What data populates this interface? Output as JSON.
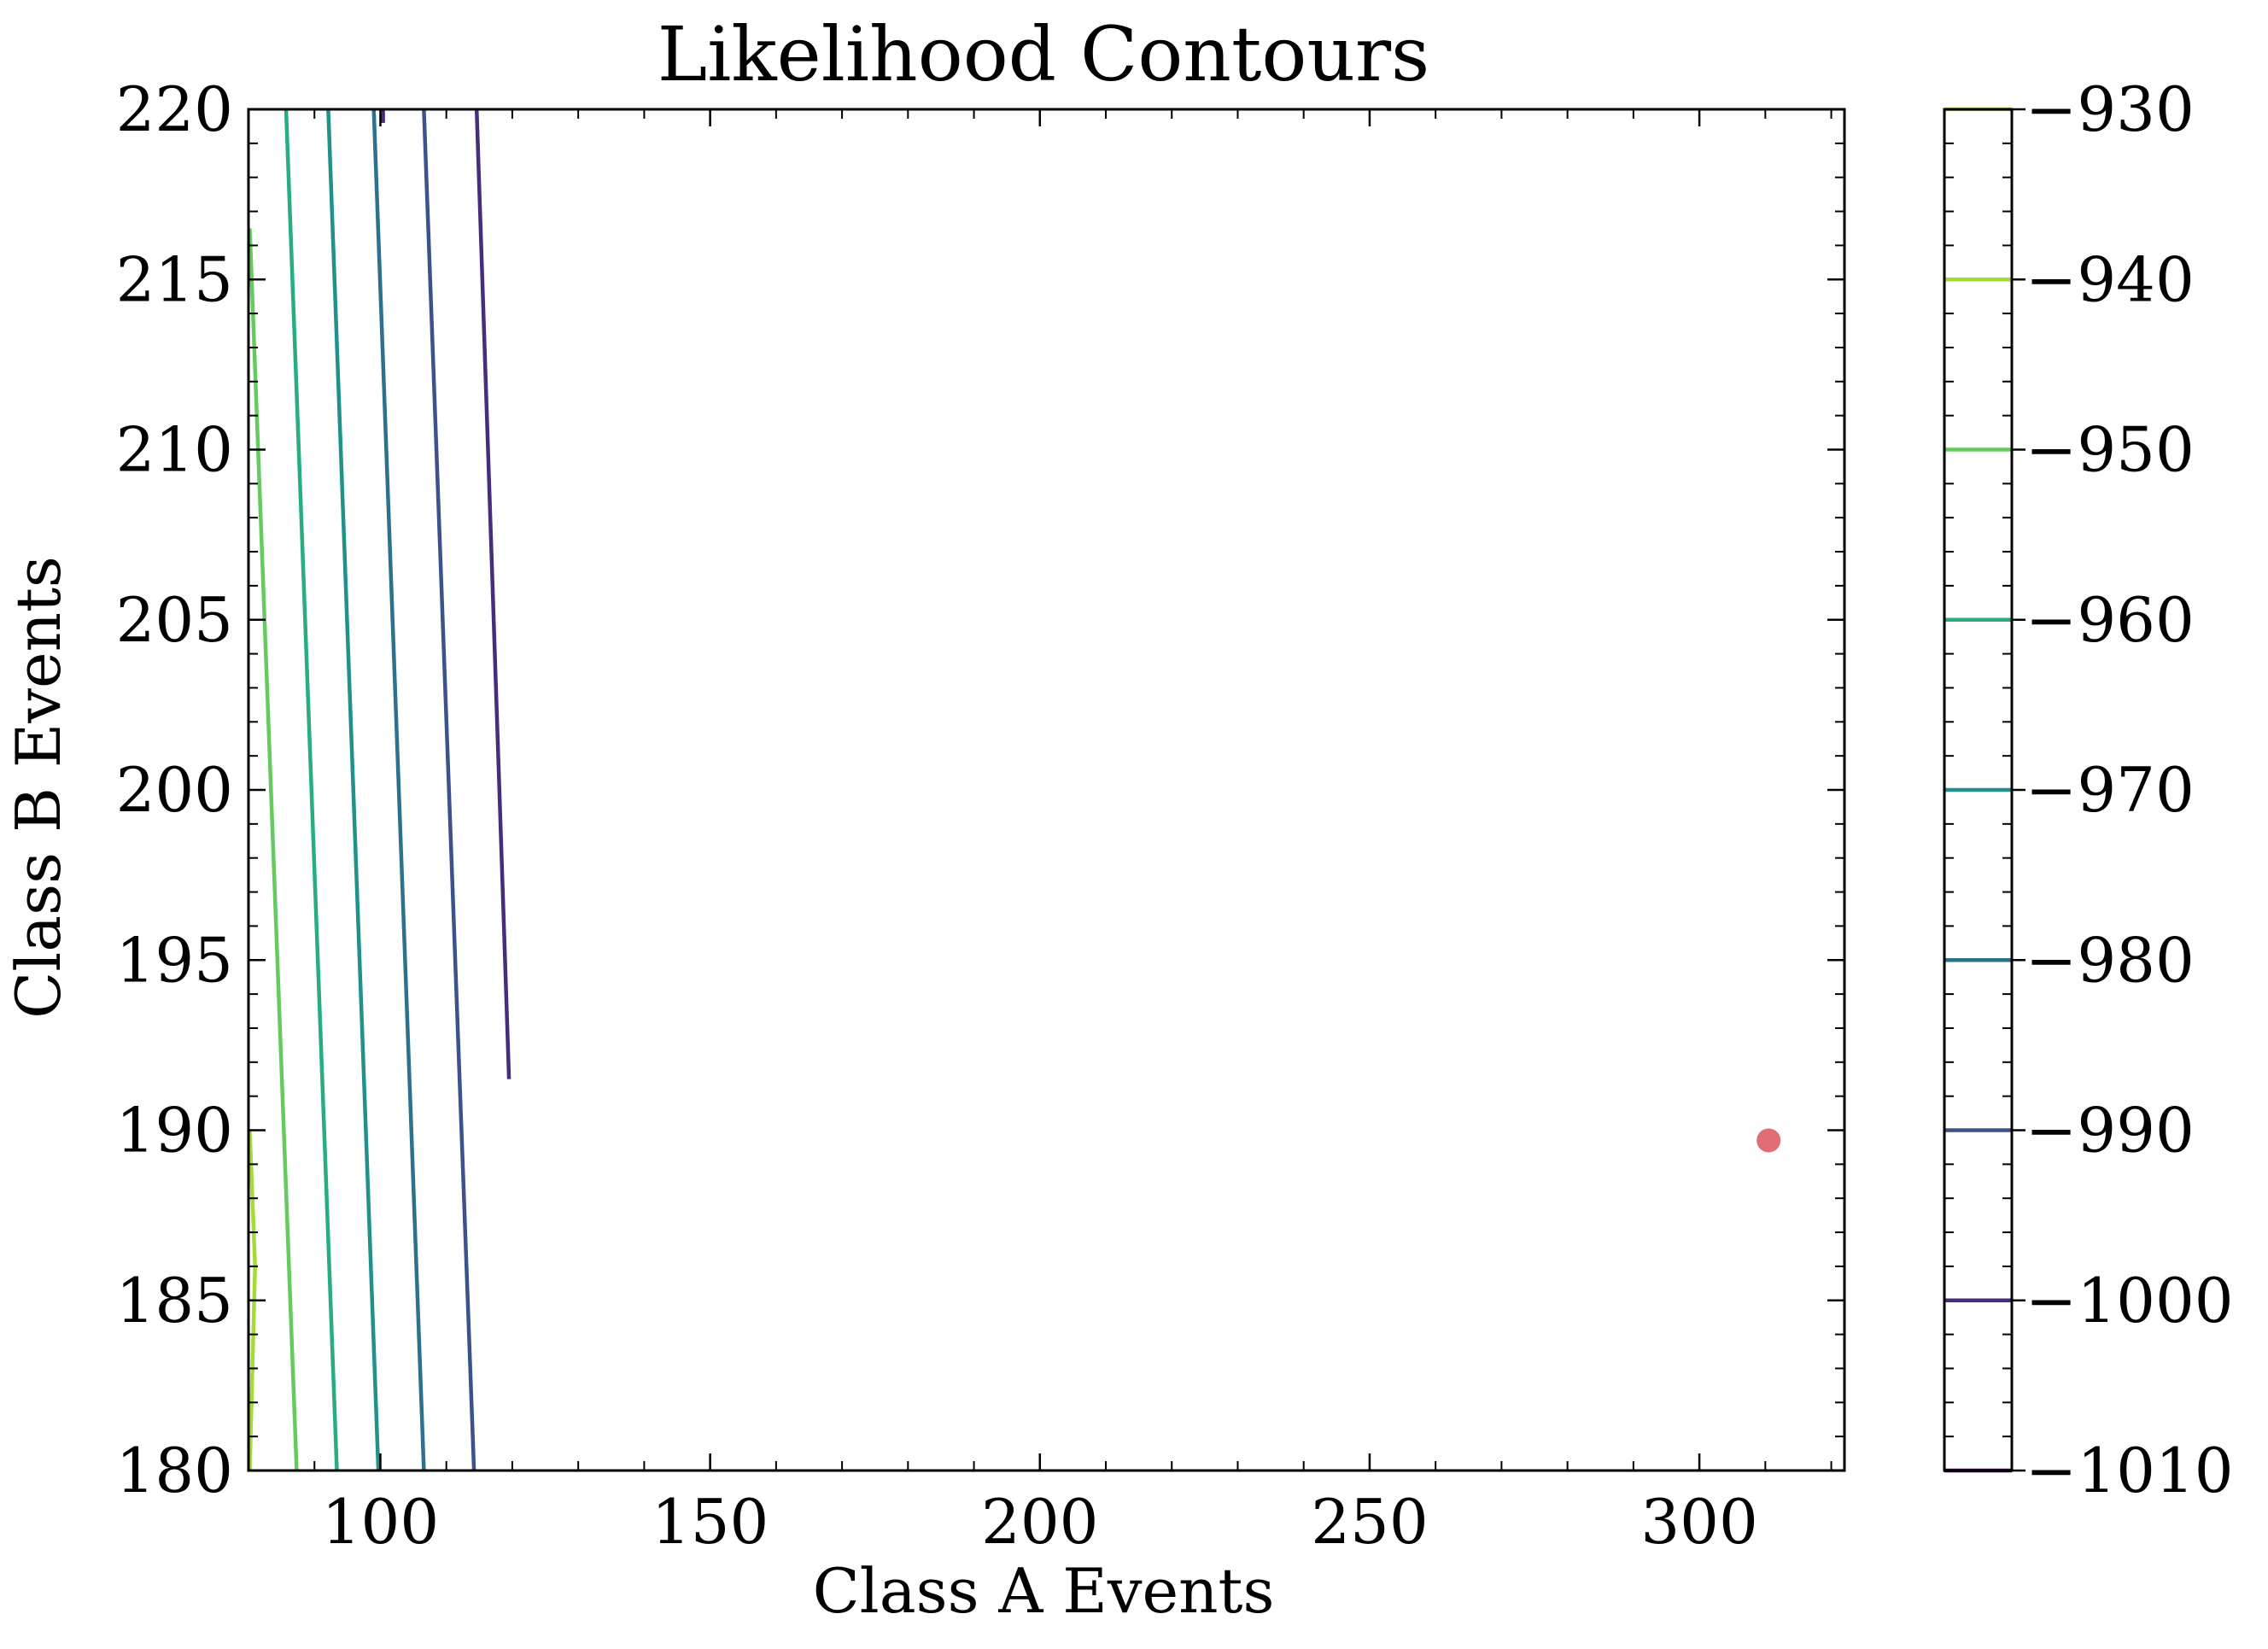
{
  "chart_data": {
    "type": "contour",
    "title": "Likelihood Contours",
    "xlabel": "Class A Events",
    "ylabel": "Class B Events",
    "xlim": [
      80,
      322
    ],
    "ylim": [
      180,
      220
    ],
    "xticks": [
      100,
      150,
      200,
      250,
      300
    ],
    "yticks": [
      180,
      185,
      190,
      195,
      200,
      205,
      210,
      215,
      220
    ],
    "grid": false,
    "colorbar": {
      "levels": [
        -930,
        -940,
        -950,
        -960,
        -970,
        -980,
        -990,
        -1000,
        -1010
      ],
      "tick_labels": [
        "−930",
        "−940",
        "−950",
        "−960",
        "−970",
        "−980",
        "−990",
        "−1000",
        "−1010"
      ],
      "colors": [
        "#bddf26",
        "#a5db36",
        "#65cb5e",
        "#27ad81",
        "#21918c",
        "#2c728e",
        "#3b528b",
        "#472d7b",
        "#440154"
      ]
    },
    "contours": [
      {
        "level": -940,
        "color": "#a5db36",
        "points": [
          [
            80.2,
            180
          ],
          [
            81,
            186
          ],
          [
            80.2,
            190
          ]
        ]
      },
      {
        "level": -950,
        "color": "#65cb5e",
        "points": [
          [
            87.3,
            180
          ],
          [
            80.2,
            216.5
          ]
        ]
      },
      {
        "level": -960,
        "color": "#27ad81",
        "points": [
          [
            93.4,
            180
          ],
          [
            85.7,
            220
          ]
        ]
      },
      {
        "level": -970,
        "color": "#21918c",
        "points": [
          [
            99.7,
            180
          ],
          [
            92.1,
            220
          ]
        ]
      },
      {
        "level": -980,
        "color": "#2c728e",
        "points": [
          [
            106.6,
            180
          ],
          [
            99.0,
            220
          ]
        ]
      },
      {
        "level": -990,
        "color": "#3b528b",
        "points": [
          [
            114.2,
            180
          ],
          [
            106.6,
            220
          ]
        ]
      },
      {
        "level": -1000,
        "color": "#472d7b",
        "points": [
          [
            119.5,
            191.5
          ],
          [
            114.6,
            220
          ]
        ]
      },
      {
        "level": -1000,
        "color": "#472d7b",
        "points": [
          [
            100.4,
            219.6
          ],
          [
            100.4,
            220
          ]
        ]
      }
    ],
    "markers": [
      {
        "x": 310.5,
        "y": 189.7,
        "color": "#e06c75"
      }
    ]
  }
}
